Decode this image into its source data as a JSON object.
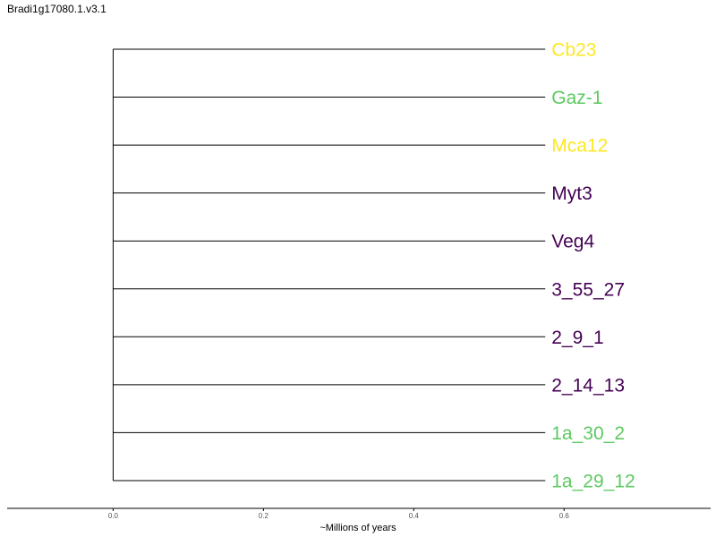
{
  "title": "Bradi1g17080.1.v3.1",
  "chart_data": {
    "type": "dendrogram",
    "title": "Bradi1g17080.1.v3.1",
    "xlabel": "~Millions of years",
    "ylabel": "",
    "xlim": [
      -0.141,
      0.795
    ],
    "xticks": [
      0.0,
      0.2,
      0.4,
      0.6
    ],
    "tick_labels": [
      "0.0",
      "0.2",
      "0.4",
      "0.6"
    ],
    "root_x": 0.0,
    "grid": false,
    "tips": [
      {
        "label": "Cb23",
        "branch_length": 0.575,
        "color": "#fde725"
      },
      {
        "label": "Gaz-1",
        "branch_length": 0.575,
        "color": "#5ec962"
      },
      {
        "label": "Mca12",
        "branch_length": 0.575,
        "color": "#fde725"
      },
      {
        "label": "Myt3",
        "branch_length": 0.575,
        "color": "#440154"
      },
      {
        "label": "Veg4",
        "branch_length": 0.575,
        "color": "#440154"
      },
      {
        "label": "3_55_27",
        "branch_length": 0.575,
        "color": "#440154"
      },
      {
        "label": "2_9_1",
        "branch_length": 0.575,
        "color": "#440154"
      },
      {
        "label": "2_14_13",
        "branch_length": 0.575,
        "color": "#440154"
      },
      {
        "label": "1a_30_2",
        "branch_length": 0.575,
        "color": "#5ec962"
      },
      {
        "label": "1a_29_12",
        "branch_length": 0.575,
        "color": "#5ec962"
      }
    ]
  }
}
